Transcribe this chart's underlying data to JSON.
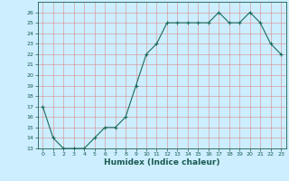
{
  "x": [
    0,
    1,
    2,
    3,
    4,
    5,
    6,
    7,
    8,
    9,
    10,
    11,
    12,
    13,
    14,
    15,
    16,
    17,
    18,
    19,
    20,
    21,
    22,
    23
  ],
  "y": [
    17,
    14,
    13,
    13,
    13,
    14,
    15,
    15,
    16,
    19,
    22,
    23,
    25,
    25,
    25,
    25,
    25,
    26,
    25,
    25,
    26,
    25,
    23,
    22
  ],
  "xlabel": "Humidex (Indice chaleur)",
  "ylim": [
    13,
    27
  ],
  "xlim": [
    -0.5,
    23.5
  ],
  "yticks": [
    13,
    14,
    15,
    16,
    17,
    18,
    19,
    20,
    21,
    22,
    23,
    24,
    25,
    26
  ],
  "xticks": [
    0,
    1,
    2,
    3,
    4,
    5,
    6,
    7,
    8,
    9,
    10,
    11,
    12,
    13,
    14,
    15,
    16,
    17,
    18,
    19,
    20,
    21,
    22,
    23
  ],
  "line_color": "#1a6b5a",
  "bg_color": "#cceeff",
  "grid_color": "#dd8888",
  "tick_color": "#1a5a50",
  "xlabel_color": "#1a5a50"
}
